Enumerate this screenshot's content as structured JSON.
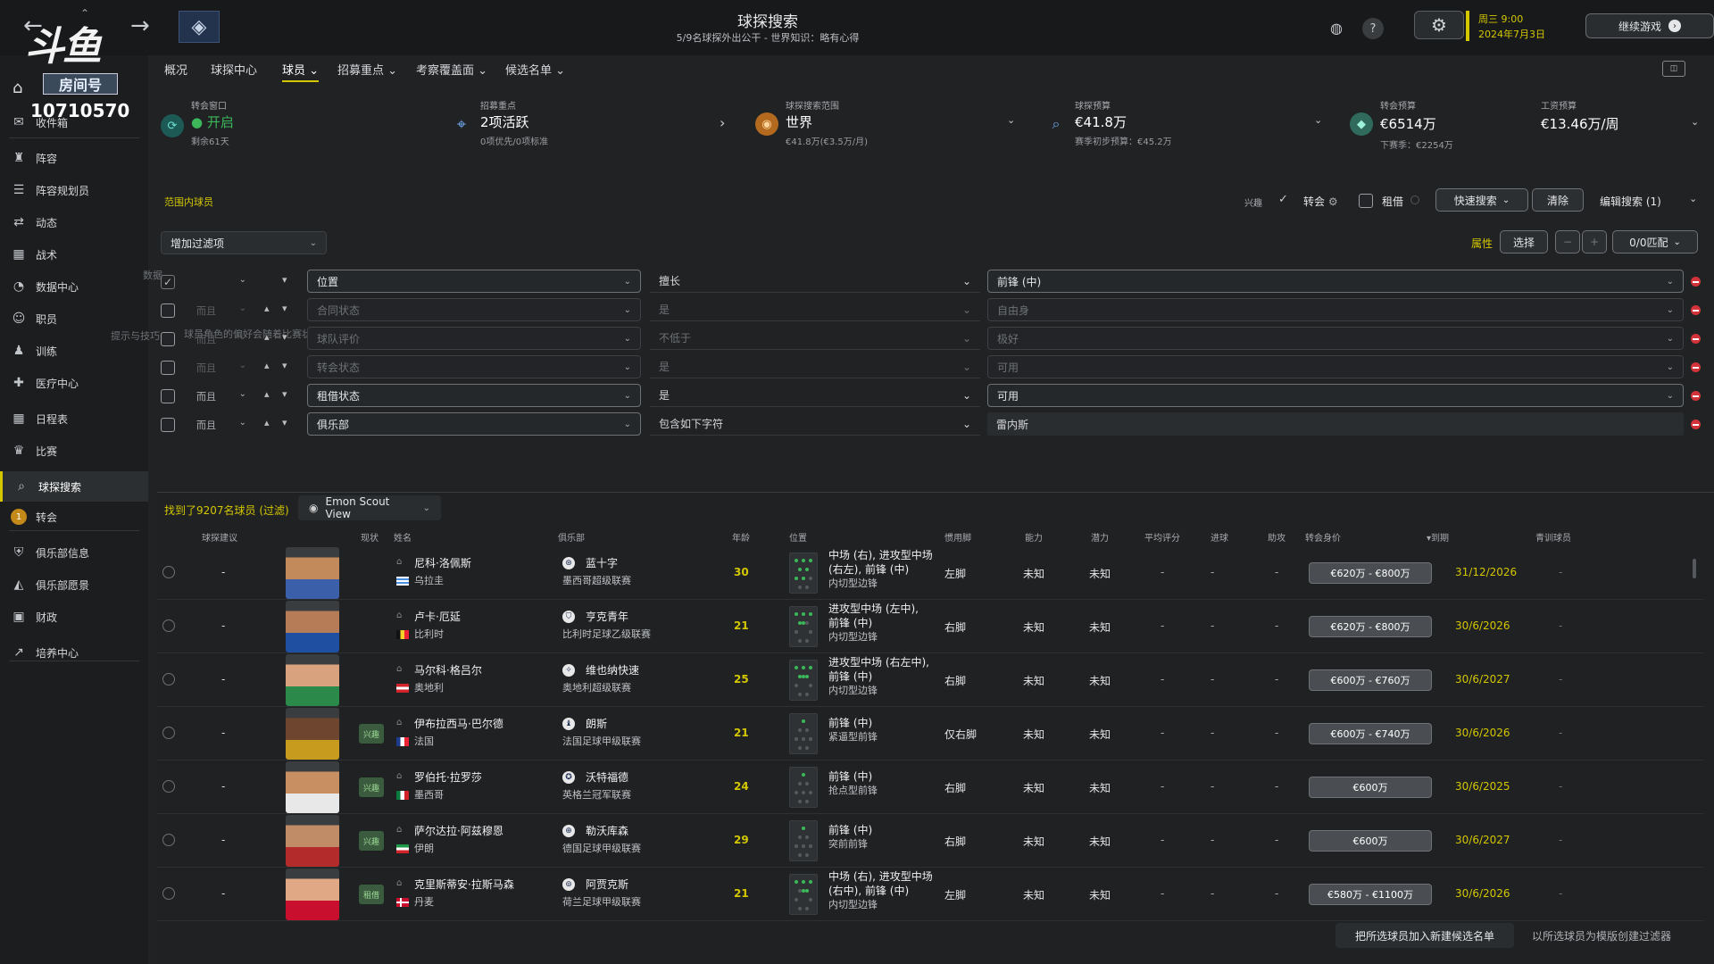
{
  "header": {
    "title": "球探搜索",
    "subtitle": "5/9名球探外出公干 - 世界知识：略有心得",
    "date_line1": "周三 9:00",
    "date_line2": "2024年7月3日",
    "continue_label": "继续游戏"
  },
  "logo": {
    "text": "斗鱼",
    "sub": "房间号",
    "room": "10710570"
  },
  "sidebar": {
    "items": [
      {
        "label": "收件箱",
        "icon": "inbox-icon"
      },
      {
        "label": "阵容",
        "icon": "shirt-icon"
      },
      {
        "label": "阵容规划员",
        "icon": "clipboard-icon"
      },
      {
        "label": "动态",
        "icon": "dynamics-icon"
      },
      {
        "label": "战术",
        "icon": "tactics-icon"
      },
      {
        "label": "数据中心",
        "icon": "data-icon"
      },
      {
        "label": "职员",
        "icon": "staff-icon"
      },
      {
        "label": "训练",
        "icon": "training-icon"
      },
      {
        "label": "医疗中心",
        "icon": "medical-icon"
      },
      {
        "label": "日程表",
        "icon": "calendar-icon"
      },
      {
        "label": "比赛",
        "icon": "trophy-icon"
      },
      {
        "label": "球探搜索",
        "icon": "search-icon"
      },
      {
        "label": "转会",
        "icon": "transfer-icon"
      },
      {
        "label": "俱乐部信息",
        "icon": "shield-icon"
      },
      {
        "label": "俱乐部愿景",
        "icon": "vision-icon"
      },
      {
        "label": "财政",
        "icon": "finance-icon"
      },
      {
        "label": "培养中心",
        "icon": "development-icon"
      }
    ],
    "transfer_badge": "1"
  },
  "tabs": [
    {
      "label": "概况"
    },
    {
      "label": "球探中心"
    },
    {
      "label": "球员 ⌄"
    },
    {
      "label": "招募重点 ⌄"
    },
    {
      "label": "考察覆盖面 ⌄"
    },
    {
      "label": "候选名单 ⌄"
    }
  ],
  "panels": {
    "window": {
      "label": "转会窗口",
      "value": "开启",
      "sub": "剩余61天"
    },
    "focus": {
      "label": "招募重点",
      "value": "2项活跃",
      "sub": "0项优先/0项标准"
    },
    "range": {
      "label": "球探搜索范围",
      "value": "世界",
      "sub": "€41.8万(€3.5万/月)"
    },
    "scout_budget": {
      "label": "球探预算",
      "value": "€41.8万",
      "sub": "赛季初步预算：€45.2万"
    },
    "transfer_budget": {
      "label": "转会预算",
      "value": "€6514万",
      "sub": "下赛季：€2254万"
    },
    "wage_budget": {
      "label": "工资预算",
      "value": "€13.46万/周",
      "sub": ""
    }
  },
  "filters": {
    "section_label": "范围内球员",
    "interest_label": "兴趣",
    "transfer_label": "转会",
    "loan_label": "租借",
    "quick_search": "快速搜索",
    "clear": "清除",
    "edit_search": "编辑搜索 (1)",
    "add_filter": "增加过滤项",
    "attributes_label": "属性",
    "select_label": "选择",
    "match_label": "0/0匹配",
    "ghost_label_1": "数据",
    "ghost_label_2": "提示与技巧",
    "ghost_text": "球员角色的偏好会随着比赛状态变化而变化。目前这些信息会影响球员们的表现。",
    "rows": [
      {
        "conj": "",
        "field": "位置",
        "op": "擅长",
        "value": "前锋 (中)",
        "checked": true,
        "dim": false
      },
      {
        "conj": "而且",
        "field": "合同状态",
        "op": "是",
        "value": "自由身",
        "checked": false,
        "dim": true
      },
      {
        "conj": "而且",
        "field": "球队评价",
        "op": "不低于",
        "value": "极好",
        "checked": false,
        "dim": true
      },
      {
        "conj": "而且",
        "field": "转会状态",
        "op": "是",
        "value": "可用",
        "checked": false,
        "dim": true
      },
      {
        "conj": "而且",
        "field": "租借状态",
        "op": "是",
        "value": "可用",
        "checked": false,
        "dim": false
      },
      {
        "conj": "而且",
        "field": "俱乐部",
        "op": "包含如下字符",
        "value": "雷内斯",
        "checked": false,
        "dim": false
      }
    ]
  },
  "results": {
    "count_label": "找到了9207名球员 (过滤)",
    "view_label": "Emon Scout View",
    "columns": [
      "球探建议",
      "现状",
      "姓名",
      "俱乐部",
      "年龄",
      "位置",
      "惯用脚",
      "能力",
      "潜力",
      "平均评分",
      "进球",
      "助攻",
      "转会身价",
      "▾到期",
      "青训球员"
    ],
    "players": [
      {
        "rec": "-",
        "status": "",
        "name": "尼科·洛佩斯",
        "nation": "乌拉圭",
        "club": "蓝十字",
        "league": "墨西哥超级联赛",
        "age": "30",
        "pos1": "中场 (右), 进攻型中场",
        "pos2": "(右左), 前锋 (中)",
        "role": "内切型边锋",
        "foot": "左脚",
        "ca": "未知",
        "pa": "未知",
        "rating": "-",
        "goals": "-",
        "assists": "-",
        "value": "€620万 - €800万",
        "expiry": "31/12/2026",
        "youth": "-"
      },
      {
        "rec": "-",
        "status": "",
        "name": "卢卡·厄延",
        "nation": "比利时",
        "club": "亨克青年",
        "league": "比利时足球乙级联赛",
        "age": "21",
        "pos1": "进攻型中场 (左中),",
        "pos2": "前锋 (中)",
        "role": "内切型边锋",
        "foot": "右脚",
        "ca": "未知",
        "pa": "未知",
        "rating": "-",
        "goals": "-",
        "assists": "-",
        "value": "€620万 - €800万",
        "expiry": "30/6/2026",
        "youth": "-"
      },
      {
        "rec": "-",
        "status": "",
        "name": "马尔科·格吕尔",
        "nation": "奥地利",
        "club": "维也纳快速",
        "league": "奥地利超级联赛",
        "age": "25",
        "pos1": "进攻型中场 (右左中),",
        "pos2": "前锋 (中)",
        "role": "内切型边锋",
        "foot": "右脚",
        "ca": "未知",
        "pa": "未知",
        "rating": "-",
        "goals": "-",
        "assists": "-",
        "value": "€600万 - €760万",
        "expiry": "30/6/2027",
        "youth": "-"
      },
      {
        "rec": "-",
        "status": "兴趣",
        "name": "伊布拉西马·巴尔德",
        "nation": "法国",
        "club": "朗斯",
        "league": "法国足球甲级联赛",
        "age": "21",
        "pos1": "前锋 (中)",
        "pos2": "",
        "role": "紧逼型前锋",
        "foot": "仅右脚",
        "ca": "未知",
        "pa": "未知",
        "rating": "-",
        "goals": "-",
        "assists": "-",
        "value": "€600万 - €740万",
        "expiry": "30/6/2026",
        "youth": "-"
      },
      {
        "rec": "-",
        "status": "兴趣",
        "name": "罗伯托·拉罗莎",
        "nation": "墨西哥",
        "club": "沃特福德",
        "league": "英格兰冠军联赛",
        "age": "24",
        "pos1": "前锋 (中)",
        "pos2": "",
        "role": "抢点型前锋",
        "foot": "右脚",
        "ca": "未知",
        "pa": "未知",
        "rating": "-",
        "goals": "-",
        "assists": "-",
        "value": "€600万",
        "expiry": "30/6/2025",
        "youth": "-"
      },
      {
        "rec": "-",
        "status": "兴趣",
        "name": "萨尔达拉·阿兹穆恩",
        "nation": "伊朗",
        "club": "勒沃库森",
        "league": "德国足球甲级联赛",
        "age": "29",
        "pos1": "前锋 (中)",
        "pos2": "",
        "role": "突前前锋",
        "foot": "右脚",
        "ca": "未知",
        "pa": "未知",
        "rating": "-",
        "goals": "-",
        "assists": "-",
        "value": "€600万",
        "expiry": "30/6/2027",
        "youth": "-"
      },
      {
        "rec": "-",
        "status": "租借",
        "name": "克里斯蒂安·拉斯马森",
        "nation": "丹麦",
        "club": "阿贾克斯",
        "league": "荷兰足球甲级联赛",
        "age": "21",
        "pos1": "中场 (右), 进攻型中场",
        "pos2": "(右中), 前锋 (中)",
        "role": "内切型边锋",
        "foot": "左脚",
        "ca": "未知",
        "pa": "未知",
        "rating": "-",
        "goals": "-",
        "assists": "-",
        "value": "€580万 - €1100万",
        "expiry": "30/6/2026",
        "youth": "-"
      }
    ],
    "add_shortlist": "把所选球员加入新建候选名单",
    "create_filter": "以所选球员为模版创建过滤器"
  },
  "colors": {
    "accent": "#d4c700",
    "positive": "#3cb75a",
    "danger": "#d2333a",
    "age": "#d4c700"
  }
}
